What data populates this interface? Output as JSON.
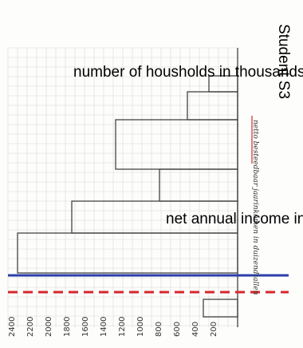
{
  "header": {
    "title": "Student S3"
  },
  "labels": {
    "y_axis": "number of housholds in thousands",
    "x_axis": "net annual income in thousands"
  },
  "value_ticks": [
    "2400",
    "2200",
    "2000",
    "1800",
    "1600",
    "1400",
    "1200",
    "1000",
    "800",
    "600",
    "400",
    "200"
  ],
  "notes": {
    "handwritten": "netto besteedbaar jaarinkomen in duizendtallen"
  }
}
